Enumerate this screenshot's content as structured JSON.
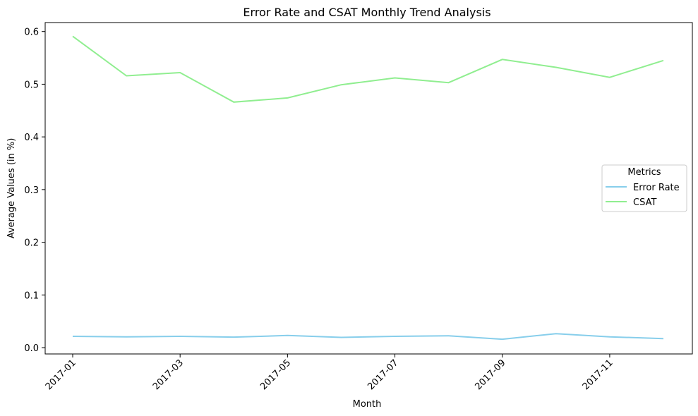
{
  "chart_data": {
    "type": "line",
    "title": "Error Rate and CSAT Monthly Trend Analysis",
    "xlabel": "Month",
    "ylabel": "Average Values (in %)",
    "x": [
      "2017-01",
      "2017-02",
      "2017-03",
      "2017-04",
      "2017-05",
      "2017-06",
      "2017-07",
      "2017-08",
      "2017-09",
      "2017-10",
      "2017-11",
      "2017-12"
    ],
    "x_tick_labels": [
      "2017-01",
      "2017-03",
      "2017-05",
      "2017-07",
      "2017-09",
      "2017-11"
    ],
    "ylim": [
      -0.012,
      0.617
    ],
    "y_ticks": [
      0.0,
      0.1,
      0.2,
      0.3,
      0.4,
      0.5,
      0.6
    ],
    "y_tick_labels": [
      "0.0",
      "0.1",
      "0.2",
      "0.3",
      "0.4",
      "0.5",
      "0.6"
    ],
    "grid": false,
    "legend": {
      "title": "Metrics",
      "placement": "center-right",
      "entries": [
        "Error Rate",
        "CSAT"
      ]
    },
    "series": [
      {
        "name": "Error Rate",
        "color": "#87ceeb",
        "values": [
          0.0215,
          0.0205,
          0.0215,
          0.02,
          0.023,
          0.0195,
          0.0215,
          0.0225,
          0.016,
          0.0265,
          0.0205,
          0.017
        ]
      },
      {
        "name": "CSAT",
        "color": "#90ee90",
        "values": [
          0.591,
          0.516,
          0.522,
          0.466,
          0.474,
          0.499,
          0.512,
          0.503,
          0.547,
          0.532,
          0.513,
          0.545
        ]
      }
    ]
  }
}
